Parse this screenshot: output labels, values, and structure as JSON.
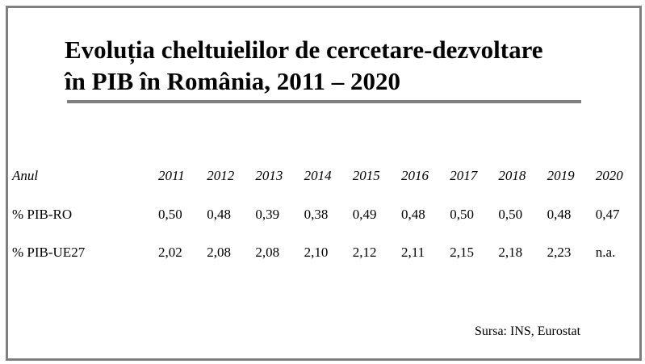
{
  "chart_data": {
    "type": "table",
    "title_lines": [
      "Evoluția cheltuielilor de cercetare-dezvoltare",
      "în PIB în România, 2011 – 2020"
    ],
    "header_label": "Anul",
    "columns": [
      "2011",
      "2012",
      "2013",
      "2014",
      "2015",
      "2016",
      "2017",
      "2018",
      "2019",
      "2020"
    ],
    "rows": [
      {
        "label": "% PIB-RO",
        "values": [
          "0,50",
          "0,48",
          "0,39",
          "0,38",
          "0,49",
          "0,48",
          "0,50",
          "0,50",
          "0,48",
          "0,47"
        ]
      },
      {
        "label": "% PIB-UE27",
        "values": [
          "2,02",
          "2,08",
          "2,08",
          "2,10",
          "2,12",
          "2,11",
          "2,15",
          "2,18",
          "2,23",
          "n.a."
        ]
      }
    ],
    "source": "Sursa: INS, Eurostat"
  },
  "colors": {
    "frame": "#7f7f7f",
    "underline": "#7f7f7f",
    "text": "#000000"
  }
}
